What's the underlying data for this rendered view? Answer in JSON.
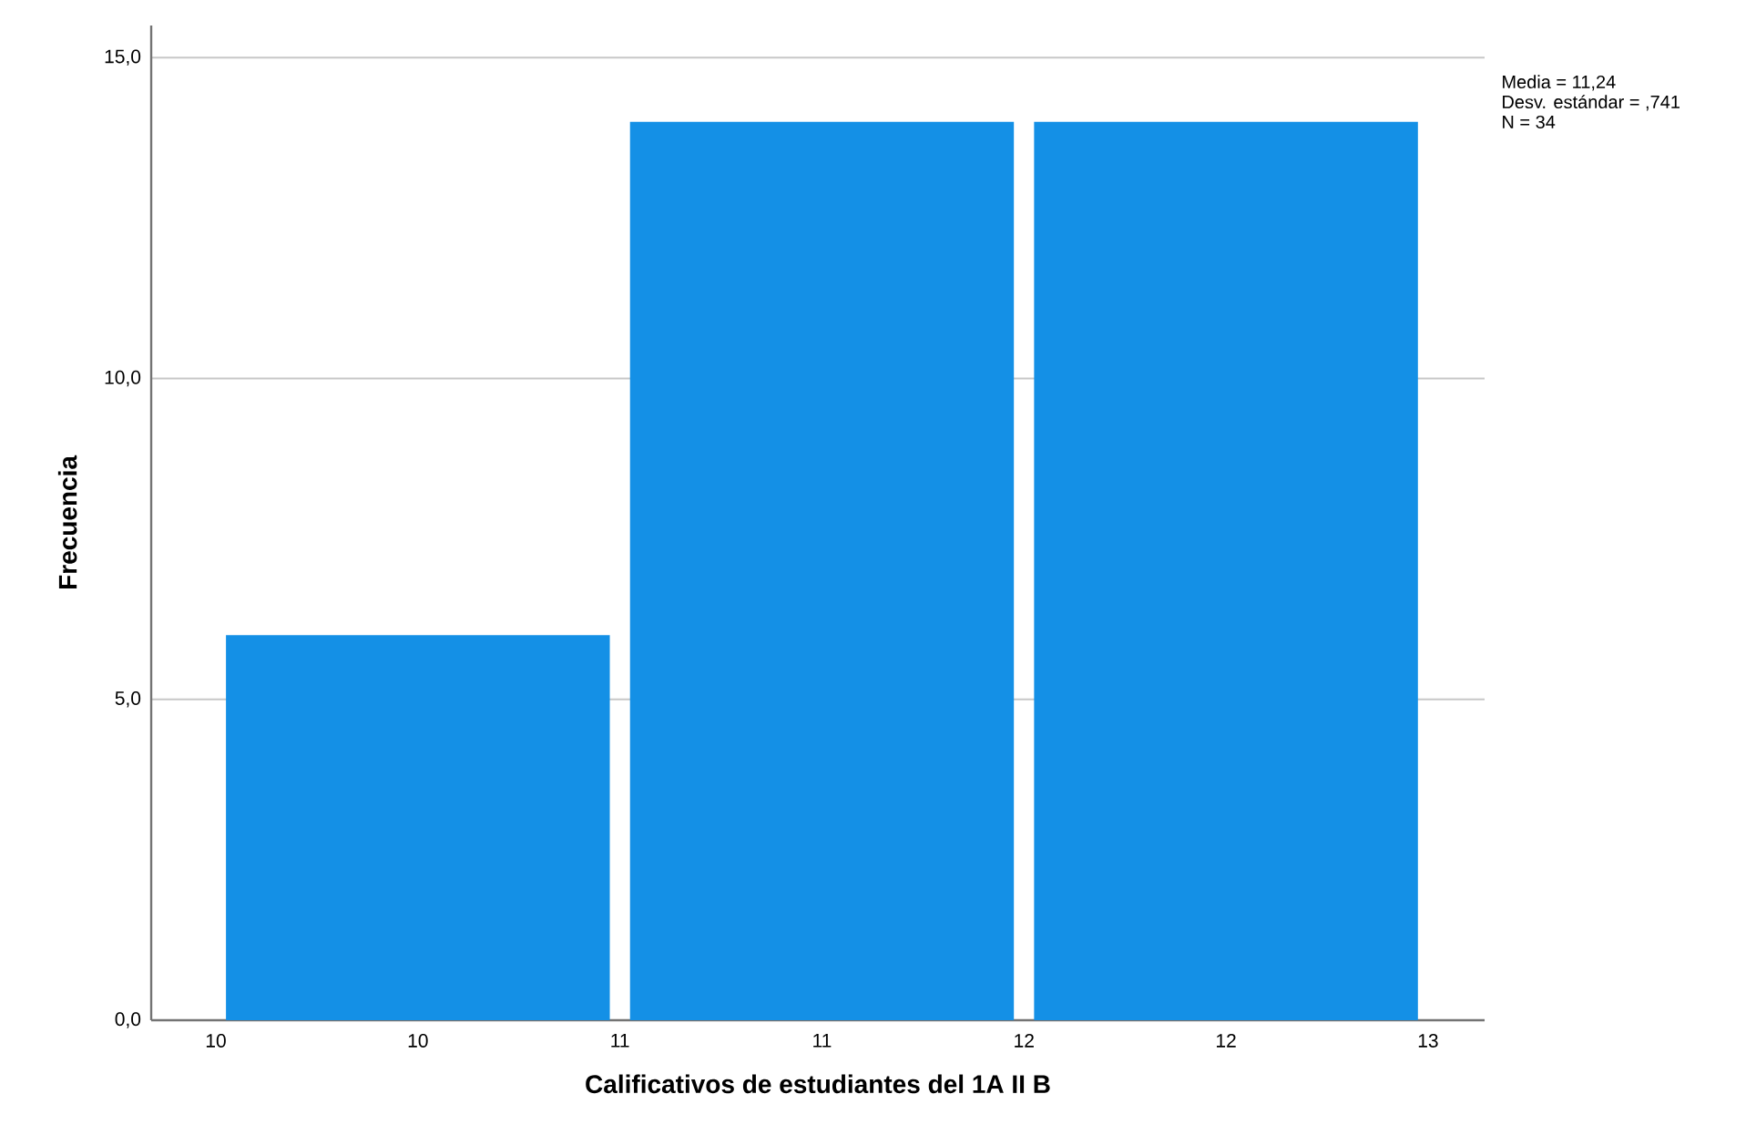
{
  "chart_data": {
    "type": "histogram",
    "xlabel": "Calificativos de estudiantes del 1A II B",
    "ylabel": "Frecuencia",
    "bins": [
      10,
      11,
      12,
      13
    ],
    "values": [
      6,
      14,
      14
    ],
    "color": "#1490e6",
    "xlim": [
      9.84,
      13.14
    ],
    "xticks": [
      {
        "value": 10,
        "label": "10"
      },
      {
        "value": 10.5,
        "label": "10"
      },
      {
        "value": 11,
        "label": "11"
      },
      {
        "value": 11.5,
        "label": "11"
      },
      {
        "value": 12,
        "label": "12"
      },
      {
        "value": 12.5,
        "label": "12"
      },
      {
        "value": 13,
        "label": "13"
      }
    ],
    "ylim": [
      0,
      15.5
    ],
    "yticks": [
      {
        "value": 0,
        "label": "0,0"
      },
      {
        "value": 5,
        "label": "5,0"
      },
      {
        "value": 10,
        "label": "10,0"
      },
      {
        "value": 15,
        "label": "15,0"
      }
    ],
    "grid": "y",
    "annotations": [
      "Media = 11,24",
      "Desv. estándar = ,741",
      "N = 34"
    ]
  }
}
